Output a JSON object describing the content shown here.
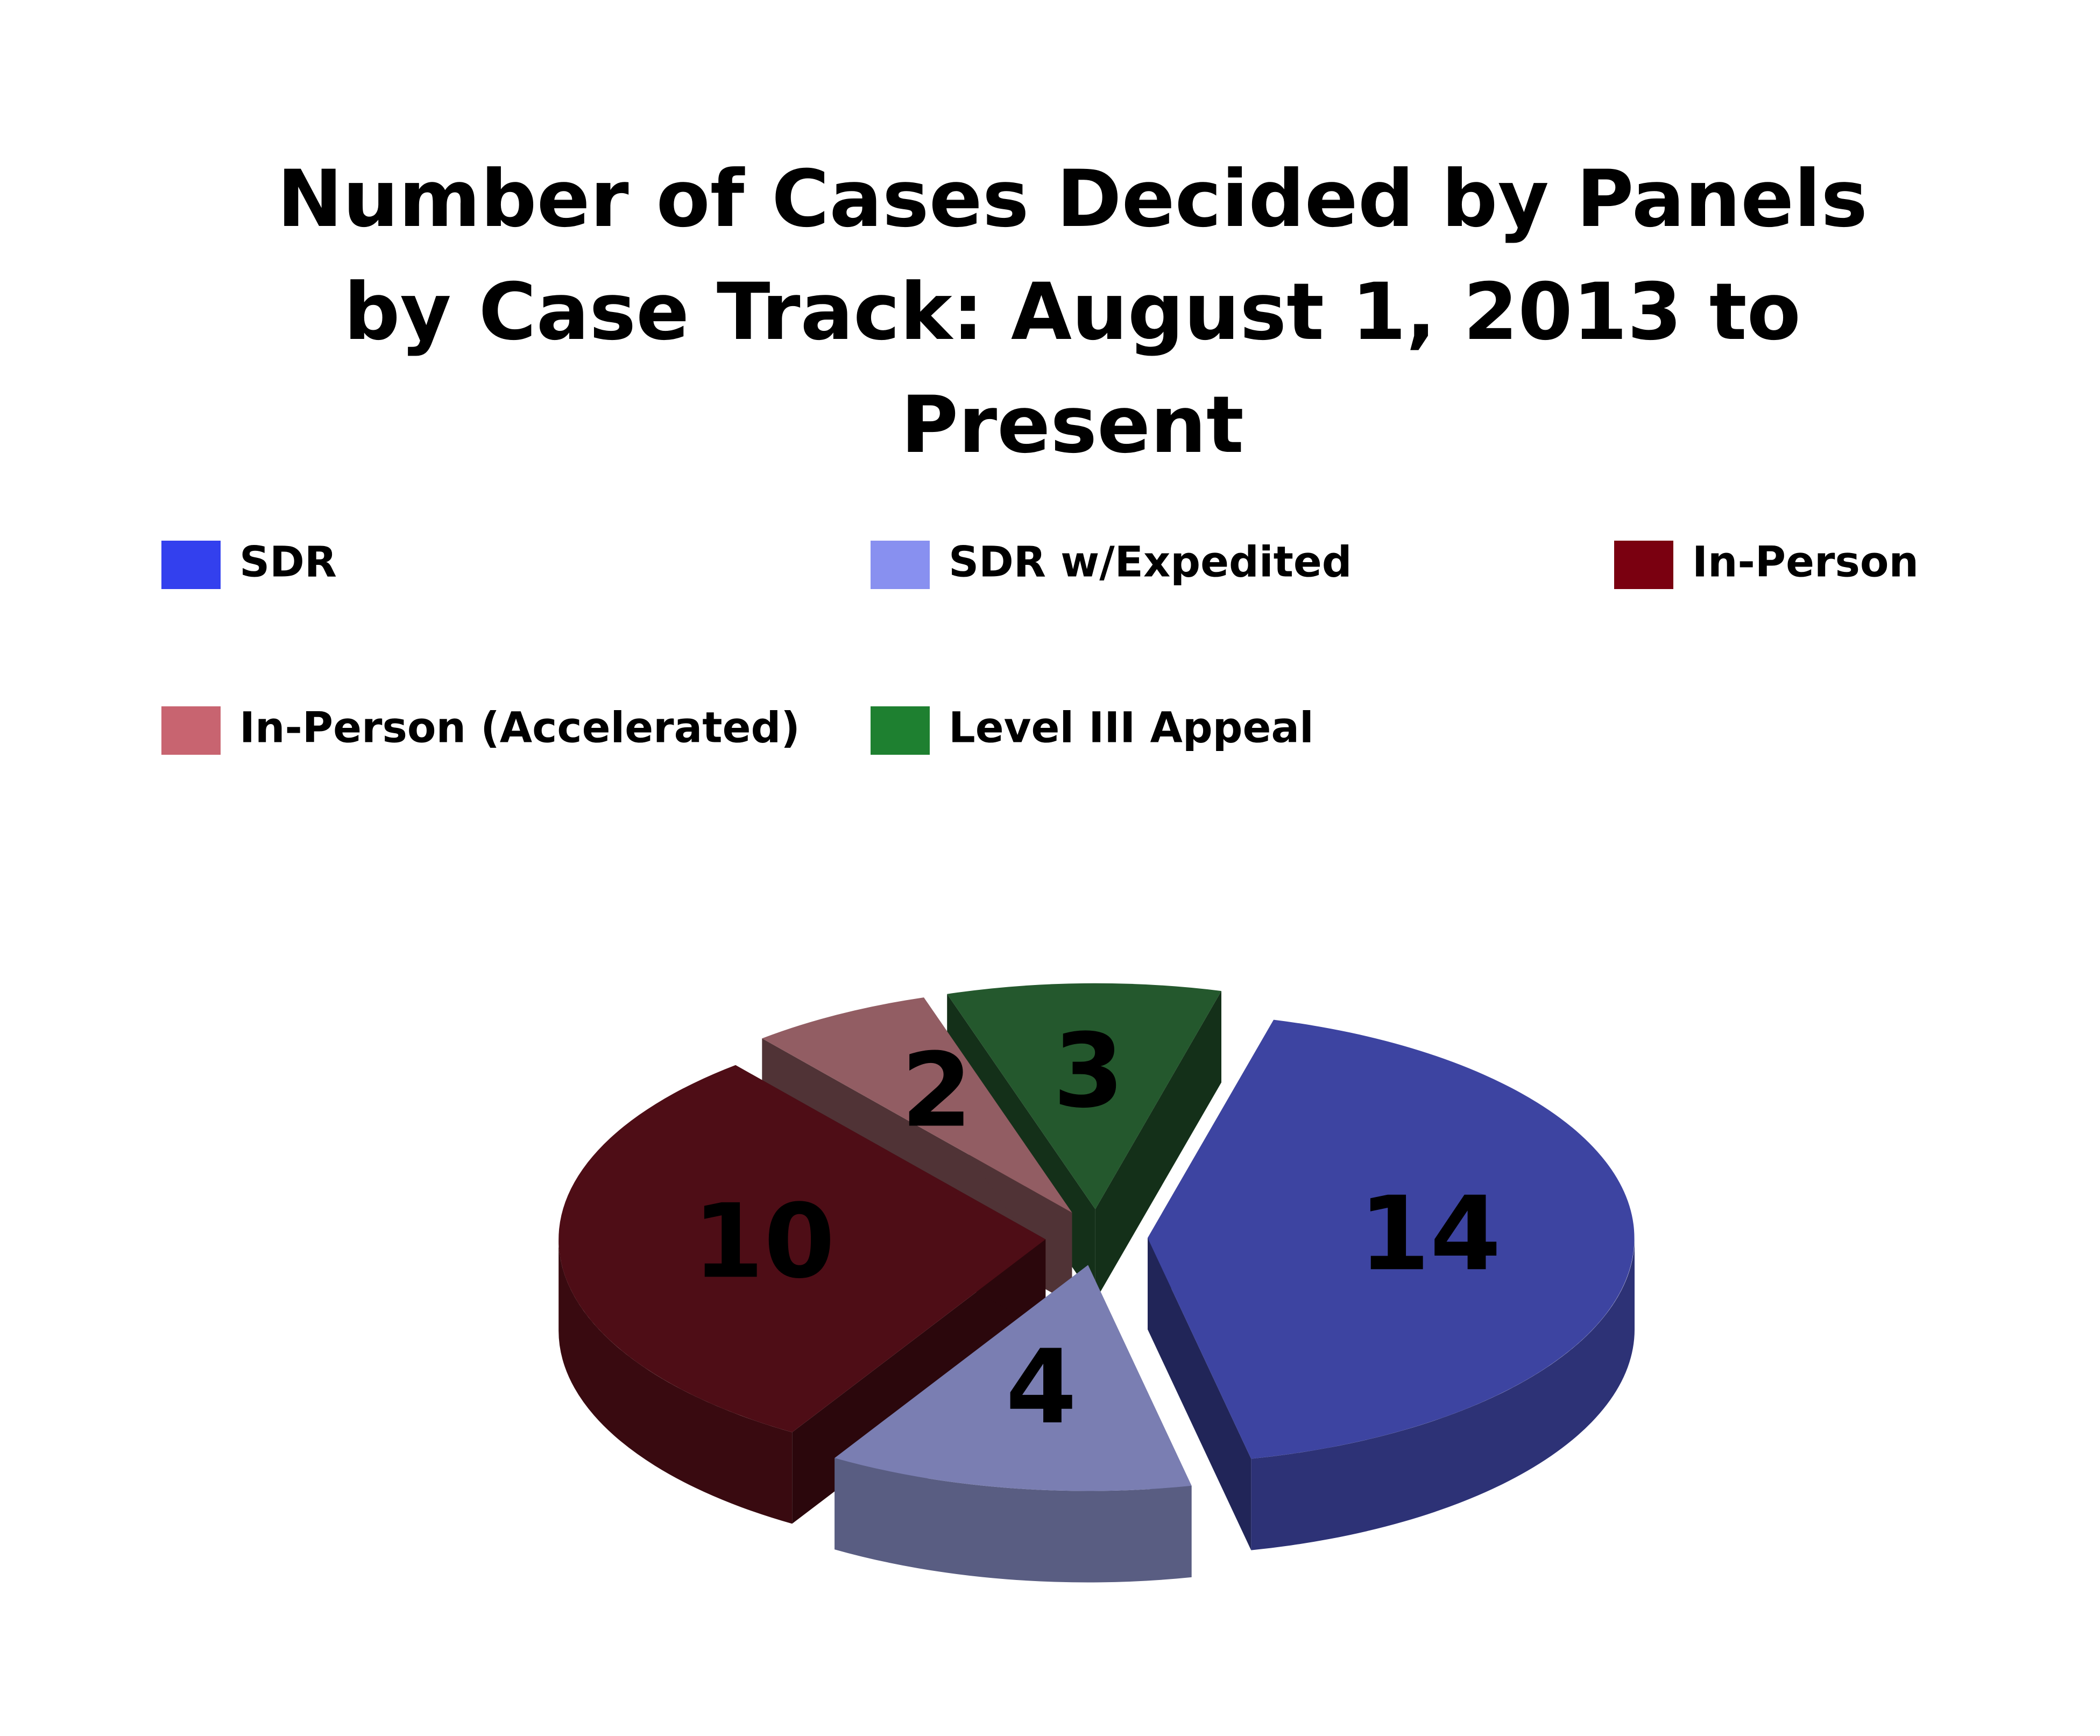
{
  "chart_data": {
    "type": "pie",
    "title": [
      "Number of Cases Decided by Panels",
      "by Case Track: August 1, 2013 to",
      "Present"
    ],
    "categories": [
      "SDR",
      "SDR w/Expedited",
      "In-Person",
      "In-Person (Accelerated)",
      "Level III Appeal"
    ],
    "values": [
      14,
      4,
      10,
      2,
      3
    ],
    "colors": [
      "#3340ee",
      "#8890f0",
      "#7a0010",
      "#c86470",
      "#1e8030"
    ],
    "legend": "top"
  }
}
